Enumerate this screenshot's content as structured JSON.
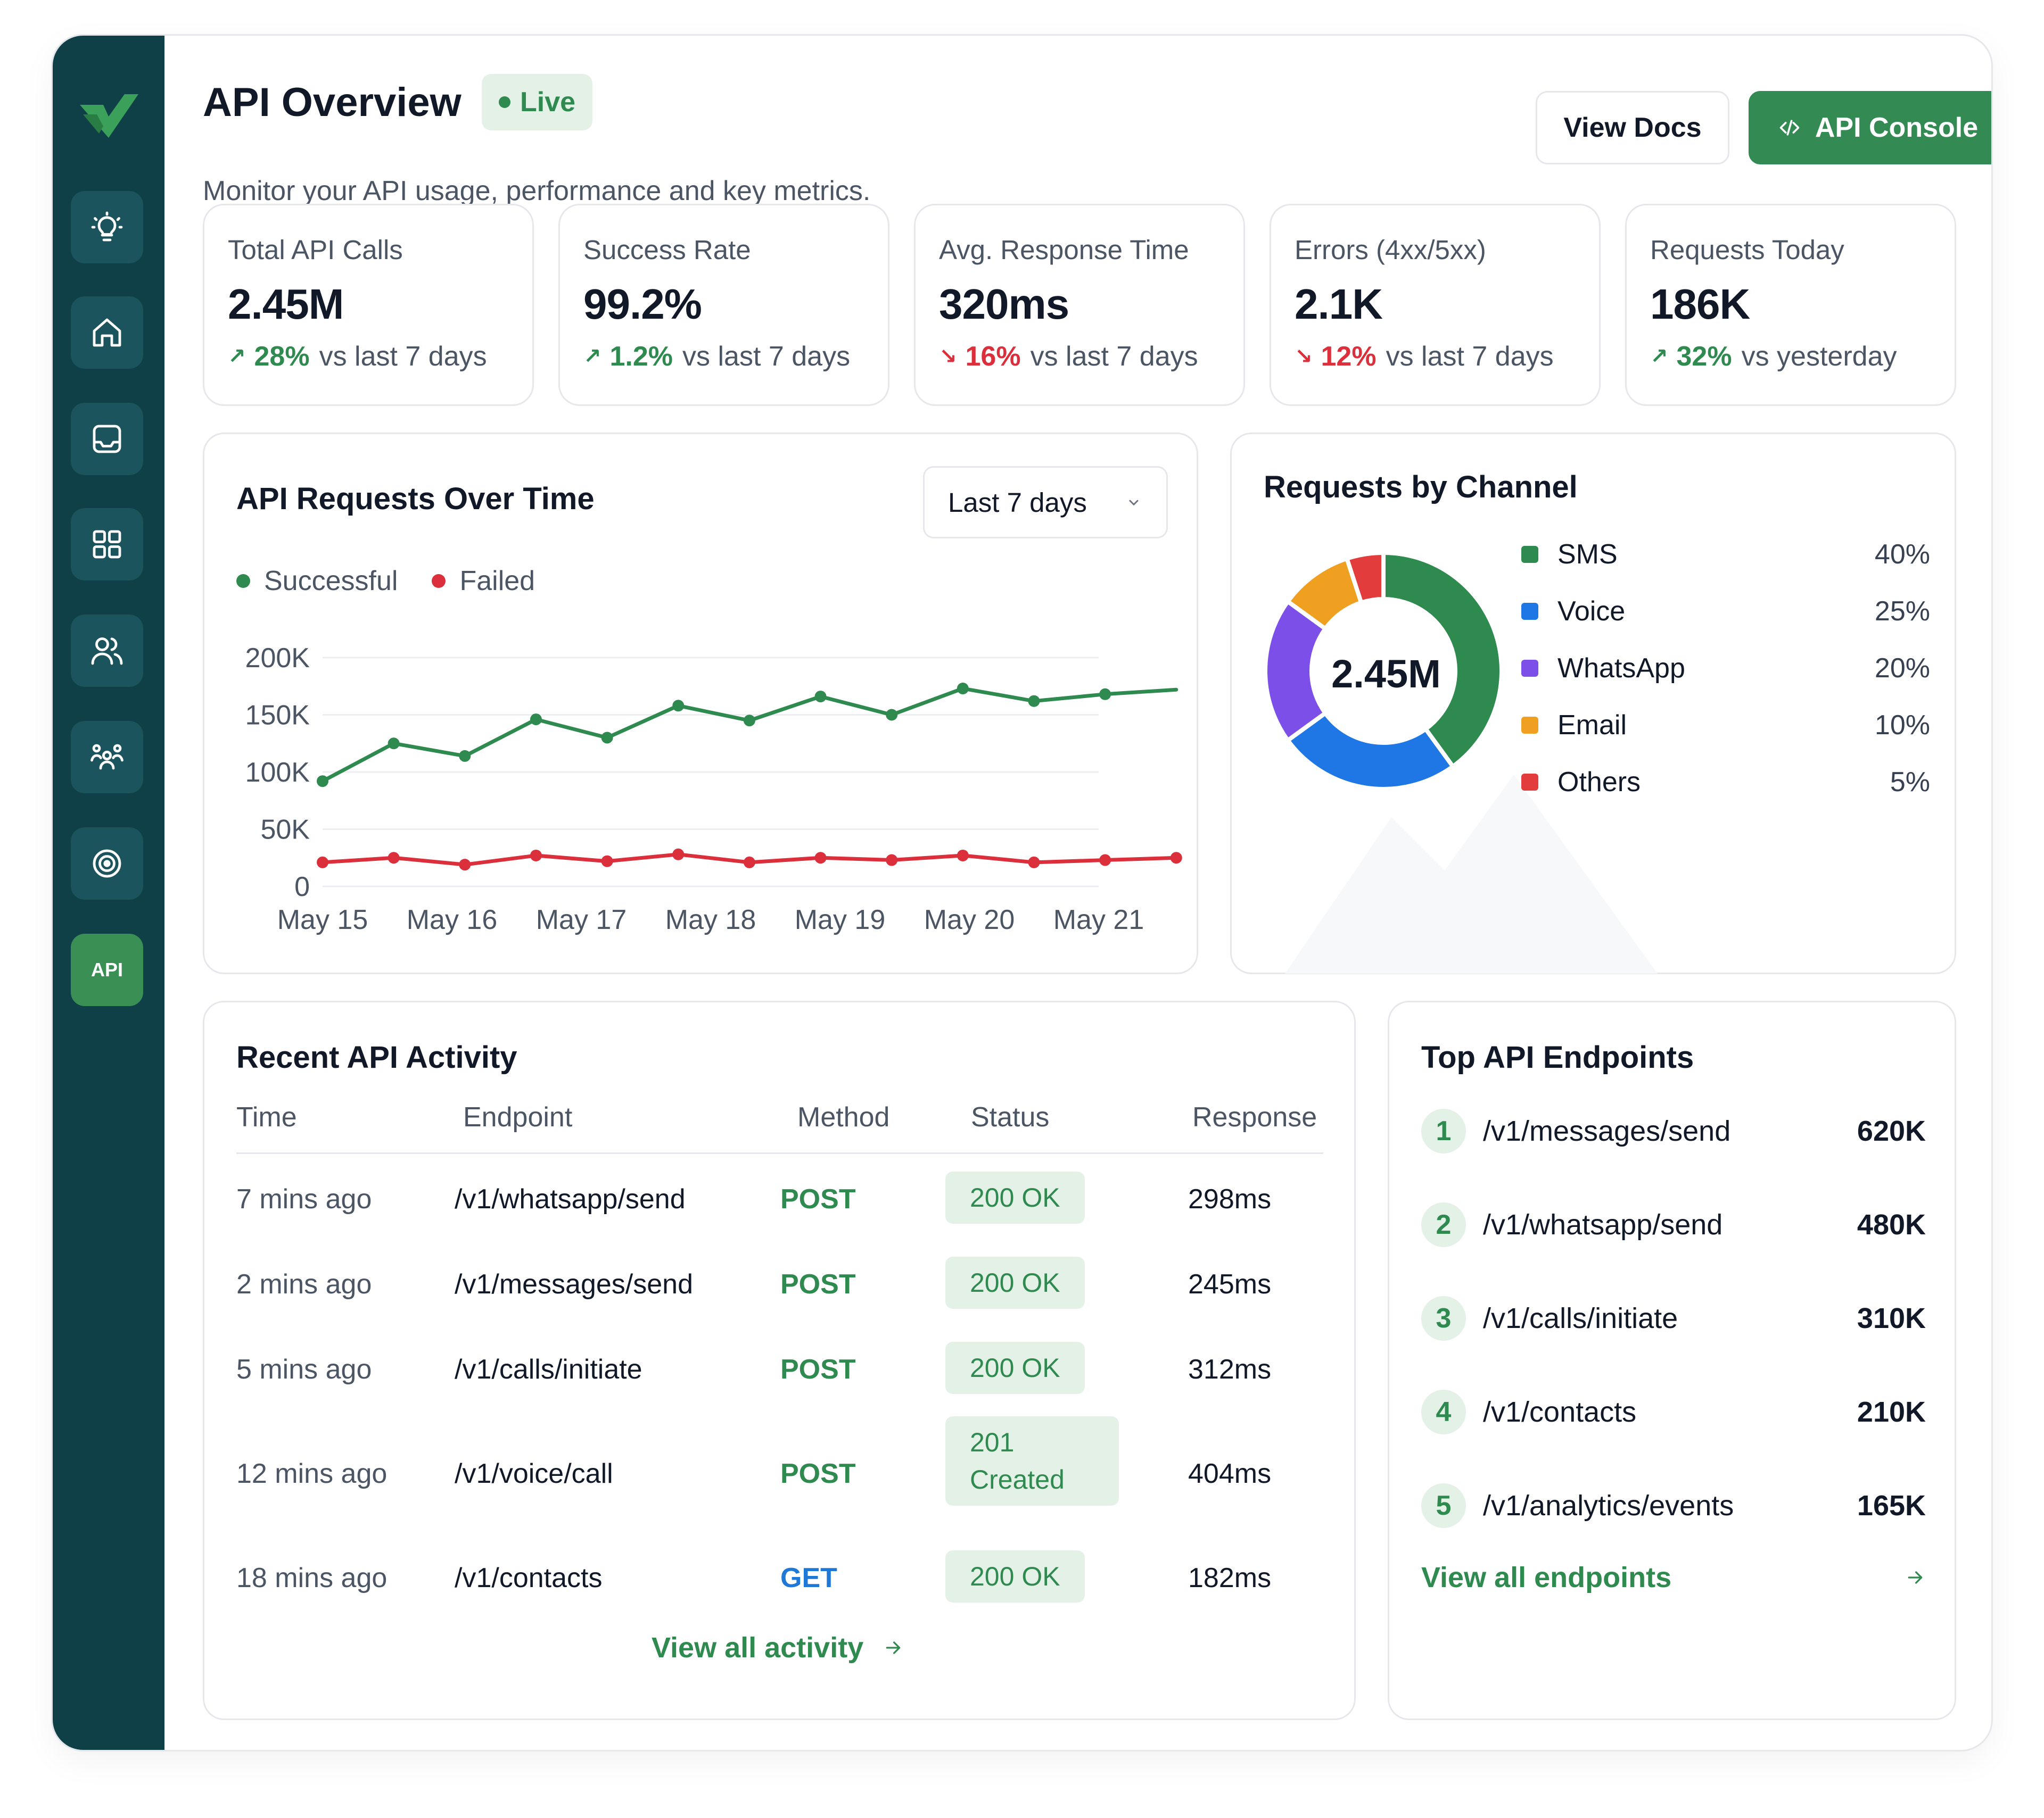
{
  "header": {
    "title": "API Overview",
    "live_label": "Live",
    "subtitle": "Monitor your API usage, performance and key metrics.",
    "view_docs_label": "View Docs",
    "api_console_label": "API Console"
  },
  "sidebar": {
    "items": [
      {
        "icon": "lightbulb-icon"
      },
      {
        "icon": "home-icon"
      },
      {
        "icon": "inbox-icon"
      },
      {
        "icon": "grid-icon"
      },
      {
        "icon": "users-icon"
      },
      {
        "icon": "team-icon"
      },
      {
        "icon": "target-icon"
      },
      {
        "icon": "api-icon",
        "label": "API",
        "active": true
      }
    ]
  },
  "kpis": [
    {
      "label": "Total API Calls",
      "value": "2.45M",
      "trend": "up",
      "change": "28%",
      "period": "vs last 7 days"
    },
    {
      "label": "Success Rate",
      "value": "99.2%",
      "trend": "up",
      "change": "1.2%",
      "period": "vs last 7 days"
    },
    {
      "label": "Avg. Response Time",
      "value": "320ms",
      "trend": "down",
      "change": "16%",
      "period": "vs last 7 days"
    },
    {
      "label": "Errors (4xx/5xx)",
      "value": "2.1K",
      "trend": "down",
      "change": "12%",
      "period": "vs last 7 days"
    },
    {
      "label": "Requests Today",
      "value": "186K",
      "trend": "up",
      "change": "32%",
      "period": "vs yesterday"
    }
  ],
  "requests_chart": {
    "title": "API Requests Over Time",
    "range_label": "Last 7 days"
  },
  "channel_chart": {
    "title": "Requests by Channel",
    "total": "2.45M",
    "channels": [
      {
        "name": "SMS",
        "pct_label": "40%"
      },
      {
        "name": "Voice",
        "pct_label": "25%"
      },
      {
        "name": "WhatsApp",
        "pct_label": "20%"
      },
      {
        "name": "Email",
        "pct_label": "10%"
      },
      {
        "name": "Others",
        "pct_label": "5%"
      }
    ]
  },
  "activity": {
    "title": "Recent API Activity",
    "columns": [
      "Time",
      "Endpoint",
      "Method",
      "Status",
      "Response"
    ],
    "rows": [
      {
        "time": "7 mins ago",
        "endpoint": "/v1/whatsapp/send",
        "method": "POST",
        "status": "200 OK",
        "response": "298ms"
      },
      {
        "time": "2 mins ago",
        "endpoint": "/v1/messages/send",
        "method": "POST",
        "status": "200 OK",
        "response": "245ms"
      },
      {
        "time": "5 mins ago",
        "endpoint": "/v1/calls/initiate",
        "method": "POST",
        "status": "200 OK",
        "response": "312ms"
      },
      {
        "time": "12 mins ago",
        "endpoint": "/v1/voice/call",
        "method": "POST",
        "status_line1": "201",
        "status_line2": "Created",
        "response": "404ms"
      },
      {
        "time": "18 mins ago",
        "endpoint": "/v1/contacts",
        "method": "GET",
        "status": "200 OK",
        "response": "182ms"
      }
    ],
    "view_all_label": "View all activity"
  },
  "endpoints": {
    "title": "Top API Endpoints",
    "items": [
      {
        "rank": "1",
        "path": "/v1/messages/send",
        "count": "620K"
      },
      {
        "rank": "2",
        "path": "/v1/whatsapp/send",
        "count": "480K"
      },
      {
        "rank": "3",
        "path": "/v1/calls/initiate",
        "count": "310K"
      },
      {
        "rank": "4",
        "path": "/v1/contacts",
        "count": "210K"
      },
      {
        "rank": "5",
        "path": "/v1/analytics/events",
        "count": "165K"
      }
    ],
    "view_all_label": "View all endpoints"
  },
  "colors": {
    "sidebar_bg": "#0f4048",
    "accent_green": "#338a52",
    "success": "#2f8a4f",
    "danger": "#dc2f3c",
    "sms": "#2f8a4f",
    "voice": "#1f77e5",
    "whatsapp": "#7b4fe8",
    "email": "#f0a020",
    "others": "#e23c3c"
  },
  "chart_data": [
    {
      "type": "line",
      "title": "API Requests Over Time",
      "x": [
        "May 15",
        "May 16",
        "May 17",
        "May 18",
        "May 19",
        "May 20",
        "May 21"
      ],
      "ylim": [
        0,
        200000
      ],
      "yticks": [
        "0",
        "50K",
        "100K",
        "150K",
        "200K"
      ],
      "grid": true,
      "legend": "top-left",
      "series": [
        {
          "name": "Successful",
          "color": "#2f8a4f",
          "x": [
            0,
            0.55,
            1.1,
            1.65,
            2.2,
            2.75,
            3.3,
            3.85,
            4.4,
            4.95,
            5.5,
            6.05,
            6.6
          ],
          "values": [
            92000,
            125000,
            114000,
            146000,
            130000,
            158000,
            145000,
            166000,
            150000,
            173000,
            162000,
            168000,
            172000
          ]
        },
        {
          "name": "Failed",
          "color": "#dc2f3c",
          "x": [
            0,
            0.55,
            1.1,
            1.65,
            2.2,
            2.75,
            3.3,
            3.85,
            4.4,
            4.95,
            5.5,
            6.05,
            6.6
          ],
          "values": [
            21000,
            25000,
            19000,
            27000,
            22000,
            28000,
            21000,
            25000,
            23000,
            27000,
            21000,
            23000,
            25000
          ]
        }
      ]
    },
    {
      "type": "pie",
      "title": "Requests by Channel",
      "categories": [
        "SMS",
        "Voice",
        "WhatsApp",
        "Email",
        "Others"
      ],
      "values": [
        40,
        25,
        20,
        10,
        5
      ],
      "colors": [
        "#2f8a4f",
        "#1f77e5",
        "#7b4fe8",
        "#f0a020",
        "#e23c3c"
      ]
    }
  ]
}
